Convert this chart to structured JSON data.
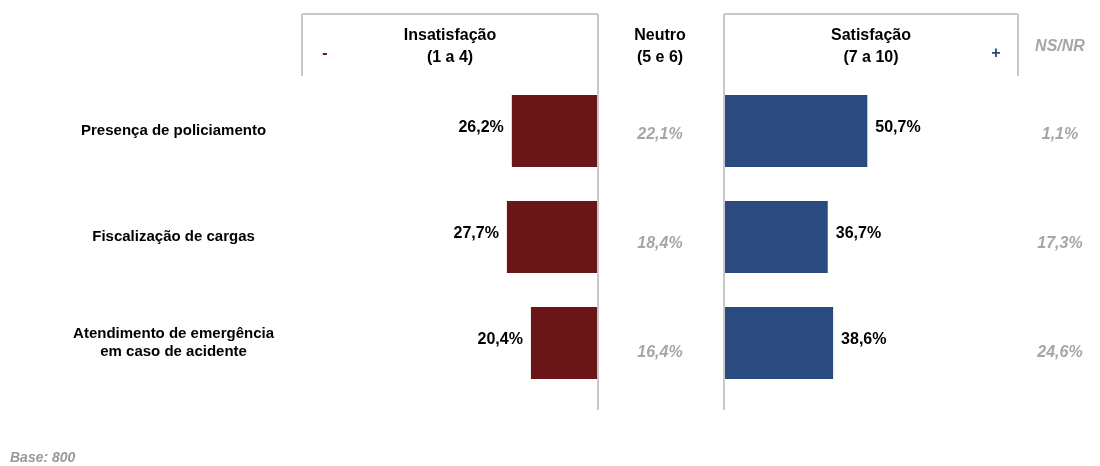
{
  "chart_data": [
    {
      "type": "bar",
      "orientation": "horizontal",
      "title": "Insatisfação\n(1 a 4)",
      "categories": [
        "Presença de policiamento",
        "Fiscalização de cargas",
        "Atendimento de emergência\nem caso de acidente"
      ],
      "series": [
        {
          "color": "#6a1517",
          "values": [
            26.2,
            27.7,
            20.4
          ],
          "value_labels": [
            "26,2%",
            "27,7%",
            "20,4%"
          ]
        }
      ],
      "xlim": [
        90,
        0
      ],
      "tick_labels": "y",
      "annotations": [
        "-",
        "Base: 800"
      ]
    },
    {
      "type": "other",
      "title": "Neutro\n(5 e 6)",
      "series": [
        {
          "color": "#a6a6a6",
          "values": [
            22.1,
            18.4,
            16.4
          ],
          "value_labels": [
            "22,1%",
            "18,4%",
            "16,4%"
          ]
        }
      ]
    },
    {
      "type": "bar",
      "orientation": "horizontal",
      "title": "Satisfação\n(7 a 10)",
      "series": [
        {
          "color": "#2b4a7d",
          "values": [
            50.7,
            36.7,
            38.6
          ],
          "value_labels": [
            "50,7%",
            "36,7%",
            "38,6%"
          ]
        }
      ],
      "xlim": [
        0,
        104
      ],
      "tick_labels": false,
      "annotations": [
        "+"
      ]
    },
    {
      "type": "other",
      "title": "NS/NR",
      "series": [
        {
          "color": "#a6a6a6",
          "values": [
            1.1,
            17.3,
            24.6
          ],
          "value_labels": [
            "1,1%",
            "17,3%",
            "24,6%"
          ]
        }
      ]
    }
  ]
}
